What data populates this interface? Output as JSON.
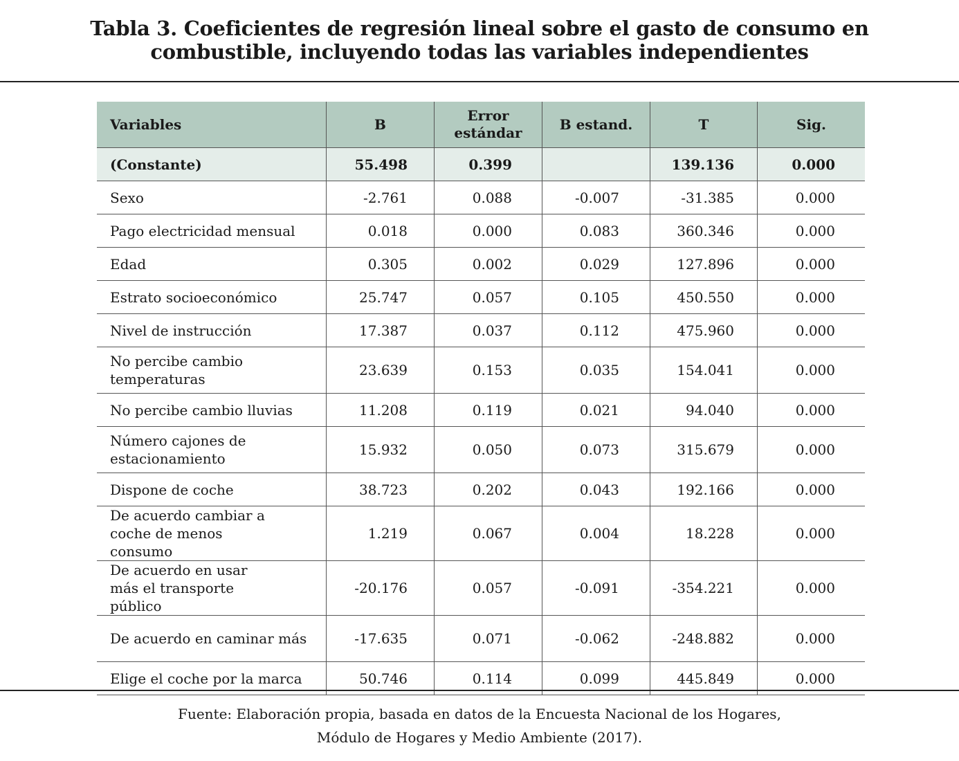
{
  "title": {
    "line1": "Tabla 3. Coeficientes de regresión lineal sobre el gasto de consumo en",
    "line2": "combustible, incluyendo todas las variables independientes"
  },
  "table": {
    "headers": [
      "Variables",
      "B",
      "Error estándar",
      "B estand.",
      "T",
      "Sig."
    ],
    "rows": [
      {
        "variable": "(Constante)",
        "b": "55.498",
        "error": "0.399",
        "b_estand": "",
        "t": "139.136",
        "sig": "0.000"
      },
      {
        "variable": "Sexo",
        "b": "-2.761",
        "error": "0.088",
        "b_estand": "-0.007",
        "t": "-31.385",
        "sig": "0.000"
      },
      {
        "variable": "Pago electricidad mensual",
        "b": "0.018",
        "error": "0.000",
        "b_estand": "0.083",
        "t": "360.346",
        "sig": "0.000"
      },
      {
        "variable": "Edad",
        "b": "0.305",
        "error": "0.002",
        "b_estand": "0.029",
        "t": "127.896",
        "sig": "0.000"
      },
      {
        "variable": "Estrato socioeconómico",
        "b": "25.747",
        "error": "0.057",
        "b_estand": "0.105",
        "t": "450.550",
        "sig": "0.000"
      },
      {
        "variable": "Nivel de instrucción",
        "b": "17.387",
        "error": "0.037",
        "b_estand": "0.112",
        "t": "475.960",
        "sig": "0.000"
      },
      {
        "variable": "No percibe cambio temperaturas",
        "b": "23.639",
        "error": "0.153",
        "b_estand": "0.035",
        "t": "154.041",
        "sig": "0.000"
      },
      {
        "variable": "No percibe cambio lluvias",
        "b": "11.208",
        "error": "0.119",
        "b_estand": "0.021",
        "t": "94.040",
        "sig": "0.000"
      },
      {
        "variable": "Número cajones de estacionamiento",
        "b": "15.932",
        "error": "0.050",
        "b_estand": "0.073",
        "t": "315.679",
        "sig": "0.000"
      },
      {
        "variable": "Dispone de coche",
        "b": "38.723",
        "error": "0.202",
        "b_estand": "0.043",
        "t": "192.166",
        "sig": "0.000"
      },
      {
        "variable": "De acuerdo cambiar a coche de menos consumo",
        "b": "1.219",
        "error": "0.067",
        "b_estand": "0.004",
        "t": "18.228",
        "sig": "0.000"
      },
      {
        "variable": "De acuerdo en usar más el transporte público",
        "b": "-20.176",
        "error": "0.057",
        "b_estand": "-0.091",
        "t": "-354.221",
        "sig": "0.000"
      },
      {
        "variable": "De acuerdo en caminar más",
        "b": "-17.635",
        "error": "0.071",
        "b_estand": "-0.062",
        "t": "-248.882",
        "sig": "0.000"
      },
      {
        "variable": "Elige el coche por la marca",
        "b": "50.746",
        "error": "0.114",
        "b_estand": "0.099",
        "t": "445.849",
        "sig": "0.000"
      }
    ]
  },
  "source": {
    "line1": "Fuente: Elaboración propia, basada en datos de la Encuesta Nacional de los Hogares,",
    "line2": "Módulo de Hogares y Medio Ambiente (2017)."
  },
  "colors": {
    "header_bg": "#b3cbc0",
    "constant_bg": "#e4ede9"
  }
}
